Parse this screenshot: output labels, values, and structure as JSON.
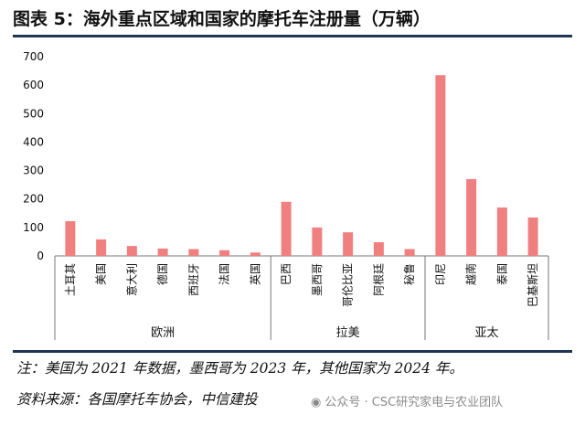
{
  "title": "图表 5：海外重点区域和国家的摩托车注册量（万辆）",
  "chart_data": {
    "type": "bar",
    "categories": [
      "土耳其",
      "美国",
      "意大利",
      "德国",
      "西班牙",
      "法国",
      "英国",
      "巴西",
      "墨西哥",
      "哥伦比亚",
      "阿根廷",
      "秘鲁",
      "印尼",
      "越南",
      "泰国",
      "巴基斯坦"
    ],
    "values": [
      122,
      58,
      35,
      26,
      24,
      20,
      12,
      190,
      100,
      83,
      48,
      24,
      635,
      270,
      170,
      135
    ],
    "groups": [
      {
        "name": "欧洲",
        "count": 7
      },
      {
        "name": "拉美",
        "count": 5
      },
      {
        "name": "亚太",
        "count": 4
      }
    ],
    "ylim": [
      0,
      700
    ],
    "yticks": [
      0,
      100,
      200,
      300,
      400,
      500,
      600,
      700
    ],
    "bar_color": "#f08080",
    "grid": false,
    "xlabel": "",
    "ylabel": ""
  },
  "note": "注：美国为 2021 年数据，墨西哥为 2023 年，其他国家为 2024 年。",
  "source": "资料来源：各国摩托车协会，中信建投",
  "watermark": "公众号 · CSC研究家电与农业团队",
  "watermark_icon": "wechat-icon"
}
